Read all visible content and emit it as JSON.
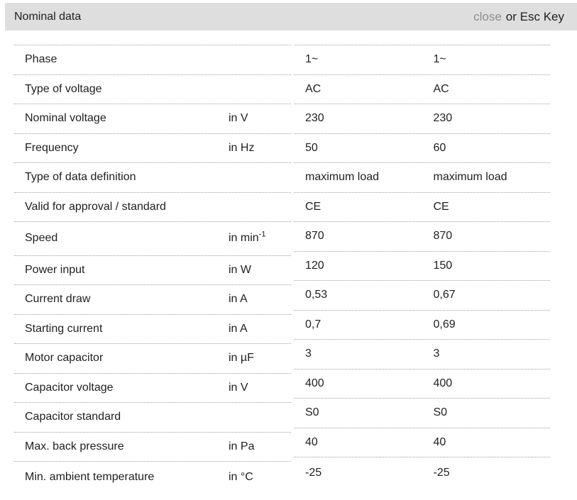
{
  "header": {
    "title": "Nominal data",
    "close_label": "close",
    "close_hint": "or Esc Key"
  },
  "colors": {
    "header_bg": "#dedede",
    "close_gray": "#8f8f8f",
    "text": "#1f1f1f",
    "divider": "#9f9f9f"
  },
  "table": {
    "rows": [
      {
        "label": "Phase",
        "unit": "",
        "v1": "1~",
        "v2": "1~"
      },
      {
        "label": "Type of voltage",
        "unit": "",
        "v1": "AC",
        "v2": "AC"
      },
      {
        "label": "Nominal voltage",
        "unit": "in V",
        "v1": "230",
        "v2": "230"
      },
      {
        "label": "Frequency",
        "unit": "in Hz",
        "v1": "50",
        "v2": "60"
      },
      {
        "label": "Type of data definition",
        "unit": "",
        "v1": "maximum load",
        "v2": "maximum load"
      },
      {
        "label": "Valid for approval / standard",
        "unit": "",
        "v1": "CE",
        "v2": "CE"
      },
      {
        "label": "Speed",
        "unit": "in min",
        "unit_sup": "-1",
        "tall": true,
        "v1": "870",
        "v2": "870"
      },
      {
        "label": "Power input",
        "unit": "in W",
        "v1": "120",
        "v2": "150"
      },
      {
        "label": "Current draw",
        "unit": "in A",
        "v1": "0,53",
        "v2": "0,67"
      },
      {
        "label": "Starting current",
        "unit": "in A",
        "v1": "0,7",
        "v2": "0,69"
      },
      {
        "label": "Motor capacitor",
        "unit": "in µF",
        "v1": "3",
        "v2": "3"
      },
      {
        "label": "Capacitor voltage",
        "unit": "in V",
        "v1": "400",
        "v2": "400"
      },
      {
        "label": "Capacitor standard",
        "unit": "",
        "v1": "S0",
        "v2": "S0"
      },
      {
        "label": "Max. back pressure",
        "unit": "in Pa",
        "v1": "40",
        "v2": "40"
      },
      {
        "label": "Min. ambient temperature",
        "unit": "in °C",
        "v1": "-25",
        "v2": "-25",
        "last": true
      }
    ]
  }
}
